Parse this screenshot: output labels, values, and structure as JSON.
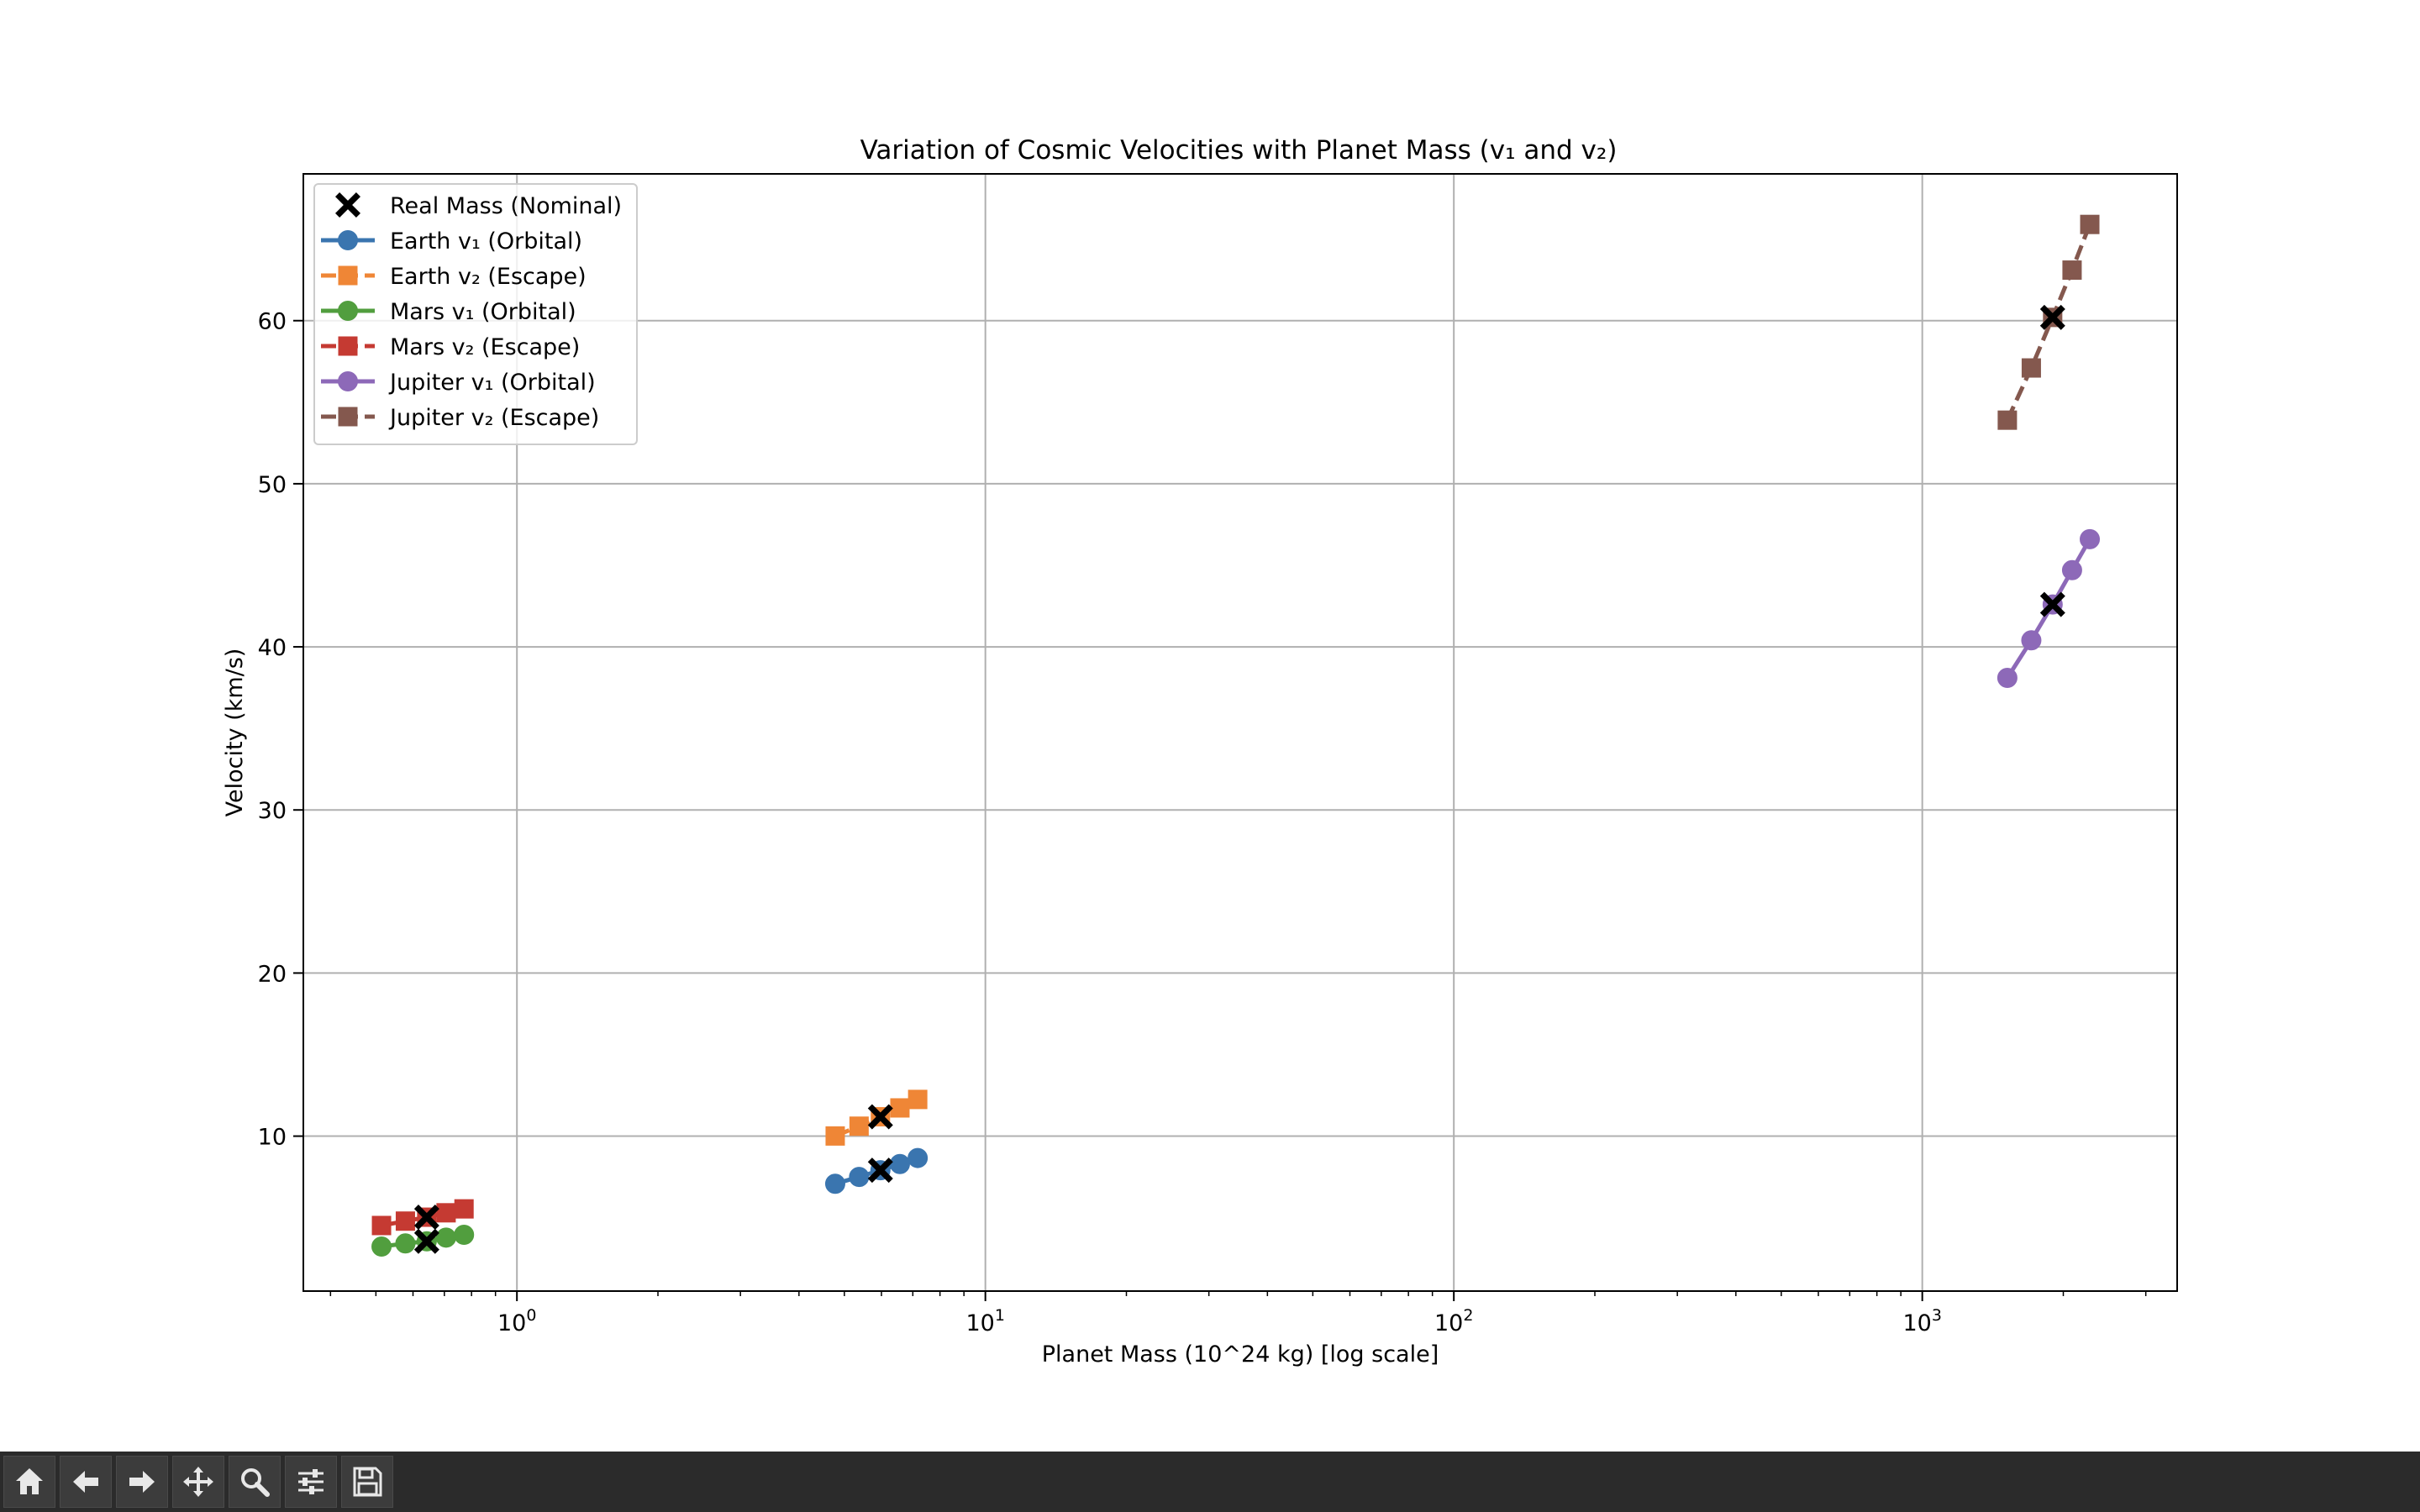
{
  "chart_data": {
    "type": "scatter",
    "title": "Variation of Cosmic Velocities with Planet Mass (v₁ and v₂)",
    "xlabel": "Planet Mass (10^24 kg) [log scale]",
    "ylabel": "Velocity (km/s)",
    "xscale": "log",
    "xlim": [
      0.35,
      3500
    ],
    "ylim": [
      0.5,
      69
    ],
    "x_ticks": [
      {
        "value": 1,
        "base": "10",
        "exp": "0"
      },
      {
        "value": 10,
        "base": "10",
        "exp": "1"
      },
      {
        "value": 100,
        "base": "10",
        "exp": "2"
      },
      {
        "value": 1000,
        "base": "10",
        "exp": "3"
      }
    ],
    "y_ticks": [
      10,
      20,
      30,
      40,
      50,
      60
    ],
    "grid": true,
    "legend_position": "upper-left",
    "series": [
      {
        "name": "Earth v₁ (Orbital)",
        "color": "#3a75af",
        "marker": "circle",
        "linestyle": "solid",
        "x": [
          4.78,
          5.375,
          5.97,
          6.57,
          7.17
        ],
        "y": [
          7.08,
          7.5,
          7.91,
          8.29,
          8.66
        ]
      },
      {
        "name": "Earth v₂ (Escape)",
        "color": "#ef8636",
        "marker": "square",
        "linestyle": "dashed",
        "x": [
          4.78,
          5.375,
          5.97,
          6.57,
          7.17
        ],
        "y": [
          10.01,
          10.61,
          11.19,
          11.73,
          12.25
        ]
      },
      {
        "name": "Mars v₁ (Orbital)",
        "color": "#519e3e",
        "marker": "circle",
        "linestyle": "solid",
        "x": [
          0.514,
          0.578,
          0.642,
          0.706,
          0.771
        ],
        "y": [
          3.23,
          3.42,
          3.55,
          3.78,
          3.95
        ]
      },
      {
        "name": "Mars v₂ (Escape)",
        "color": "#c53a32",
        "marker": "square",
        "linestyle": "dashed",
        "x": [
          0.514,
          0.578,
          0.642,
          0.706,
          0.771
        ],
        "y": [
          4.52,
          4.79,
          5.03,
          5.3,
          5.54
        ]
      },
      {
        "name": "Jupiter v₁ (Orbital)",
        "color": "#8d69b8",
        "marker": "circle",
        "linestyle": "solid",
        "x": [
          1519,
          1709,
          1898,
          2088,
          2278
        ],
        "y": [
          38.1,
          40.4,
          42.6,
          44.7,
          46.6
        ]
      },
      {
        "name": "Jupiter v₂ (Escape)",
        "color": "#84584e",
        "marker": "square",
        "linestyle": "dashed",
        "x": [
          1519,
          1709,
          1898,
          2088,
          2278
        ],
        "y": [
          53.9,
          57.1,
          60.2,
          63.1,
          65.9
        ]
      }
    ],
    "nominal": {
      "name": "Real Mass (Nominal)",
      "color": "#000000",
      "marker": "x",
      "points": [
        {
          "x": 5.97,
          "y": 7.91
        },
        {
          "x": 5.97,
          "y": 11.19
        },
        {
          "x": 0.642,
          "y": 3.55
        },
        {
          "x": 0.642,
          "y": 5.03
        },
        {
          "x": 1898,
          "y": 42.6
        },
        {
          "x": 1898,
          "y": 60.2
        }
      ]
    }
  },
  "legend": {
    "items": [
      {
        "label": "Real Mass (Nominal)",
        "kind": "x",
        "color": "#000000",
        "dashed": false
      },
      {
        "label": "Earth v₁ (Orbital)",
        "kind": "circle",
        "color": "#3a75af",
        "dashed": false
      },
      {
        "label": "Earth v₂ (Escape)",
        "kind": "square",
        "color": "#ef8636",
        "dashed": true
      },
      {
        "label": "Mars v₁ (Orbital)",
        "kind": "circle",
        "color": "#519e3e",
        "dashed": false
      },
      {
        "label": "Mars v₂ (Escape)",
        "kind": "square",
        "color": "#c53a32",
        "dashed": true
      },
      {
        "label": "Jupiter v₁ (Orbital)",
        "kind": "circle",
        "color": "#8d69b8",
        "dashed": false
      },
      {
        "label": "Jupiter v₂ (Escape)",
        "kind": "square",
        "color": "#84584e",
        "dashed": true
      }
    ]
  },
  "toolbar": {
    "buttons": [
      {
        "name": "home-button",
        "icon": "home-icon"
      },
      {
        "name": "back-button",
        "icon": "arrow-left-icon"
      },
      {
        "name": "forward-button",
        "icon": "arrow-right-icon"
      },
      {
        "name": "pan-button",
        "icon": "move-icon"
      },
      {
        "name": "zoom-button",
        "icon": "magnifier-icon"
      },
      {
        "name": "configure-subplots-button",
        "icon": "sliders-icon"
      },
      {
        "name": "save-button",
        "icon": "floppy-disk-icon"
      }
    ]
  }
}
